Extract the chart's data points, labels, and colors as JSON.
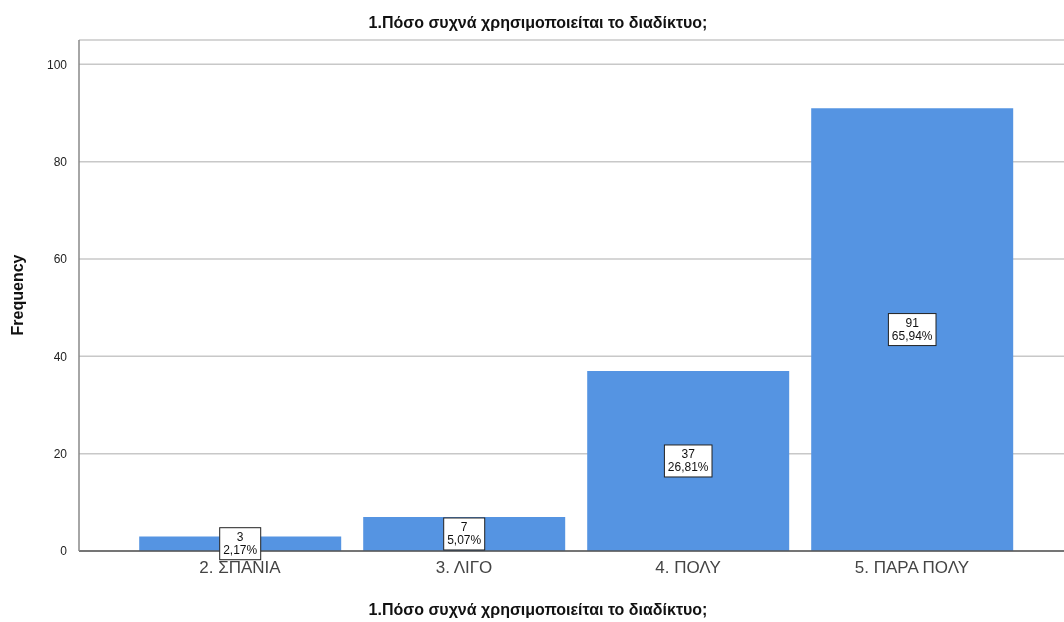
{
  "chart_data": {
    "type": "bar",
    "title": "1.Πόσο συχνά χρησιμοποιείται το διαδίκτυο;",
    "xlabel": "1.Πόσο συχνά χρησιμοποιείται το διαδίκτυο;",
    "ylabel": "Frequency",
    "categories": [
      "2. ΣΠΑΝΙΑ",
      "3. ΛΙΓΟ",
      "4. ΠΟΛΥ",
      "5. ΠΑΡΑ ΠΟΛΥ"
    ],
    "values": [
      3,
      7,
      37,
      91
    ],
    "color": "#5594e2",
    "value_labels": [
      "3\n2,17%",
      "7\n5,07%",
      "37\n26,81%",
      "91\n65,94%"
    ],
    "ylim": [
      0,
      105
    ],
    "yticks": [
      0,
      20,
      40,
      60,
      80,
      100
    ],
    "grid": "y"
  }
}
